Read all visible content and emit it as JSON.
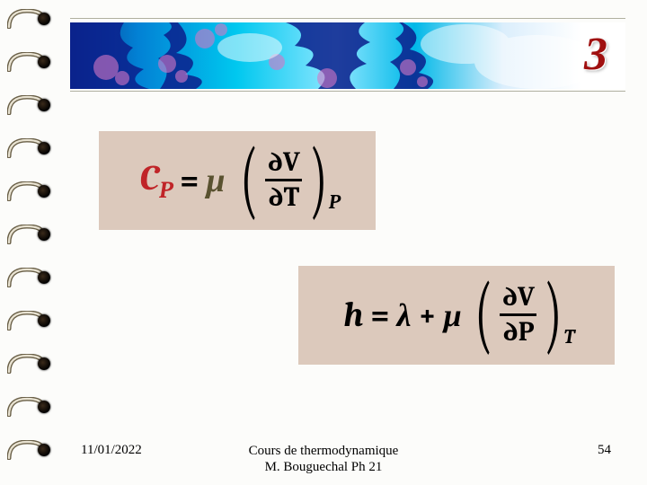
{
  "chapter_number": "3",
  "banner": {
    "gradient_stops": [
      "#0a3a8a",
      "#0280d4",
      "#00c8ef",
      "#8fe7ff",
      "#00b8e8",
      "#dbeefc",
      "#ffffff"
    ],
    "accent_pink": "#d477c6",
    "accent_deep_blue": "#0b1f8c"
  },
  "equations": {
    "box_bg": "#dcc9bc",
    "eq1": {
      "lhs_symbol": "C",
      "lhs_subscript": "P",
      "lhs_color": "#c02428",
      "equals": "=",
      "coeff": "μ",
      "coeff_color": "#5a5230",
      "frac_num_d": "∂V",
      "frac_den_d": "∂T",
      "paren_subscript": "P"
    },
    "eq2": {
      "lhs_symbol": "h",
      "equals": "=",
      "term1": "λ",
      "plus": "+",
      "coeff": "μ",
      "frac_num_d": "∂V",
      "frac_den_d": "∂P",
      "paren_subscript": "T"
    }
  },
  "footer": {
    "date": "11/01/2022",
    "course_line1": "Cours de thermodynamique",
    "course_line2": "M. Bouguechal  Ph 21",
    "page": "54"
  },
  "binder": {
    "ring_count": 11,
    "ring_color_light": "#e9e3d2",
    "ring_color_dark": "#6a6048"
  }
}
